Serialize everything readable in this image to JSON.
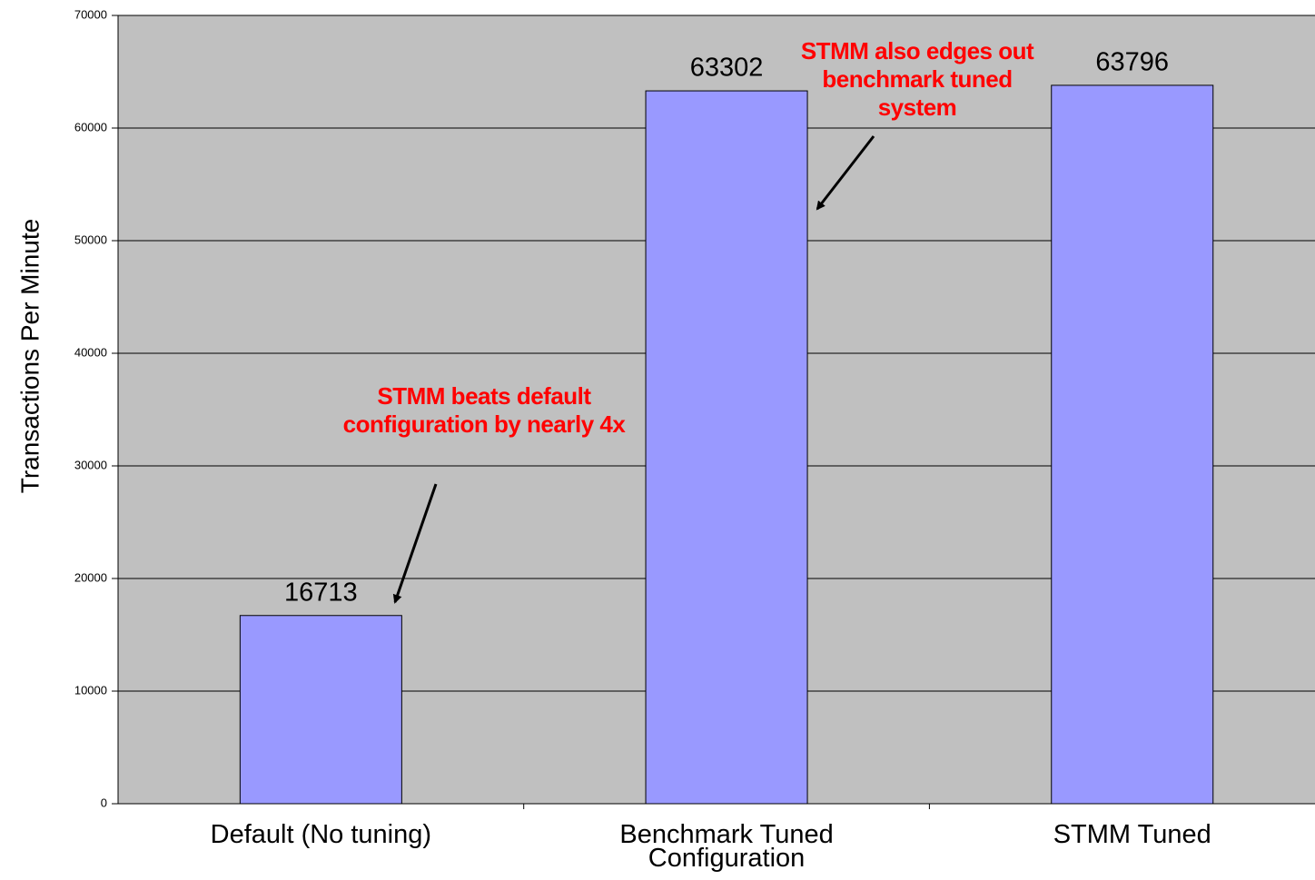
{
  "chart_data": {
    "type": "bar",
    "y_label": "Transactions Per Minute",
    "categories": [
      "Default (No tuning)",
      "Benchmark Tuned Configuration",
      "STMM Tuned"
    ],
    "values": [
      16713,
      63302,
      63796
    ],
    "color": "#9999ff",
    "ylim": [
      0,
      70000
    ],
    "yticks": [
      0,
      10000,
      20000,
      30000,
      40000,
      50000,
      60000,
      70000
    ],
    "grid": true,
    "annotations": [
      "STMM beats default configuration by nearly 4x",
      "STMM also edges out benchmark tuned system"
    ]
  }
}
